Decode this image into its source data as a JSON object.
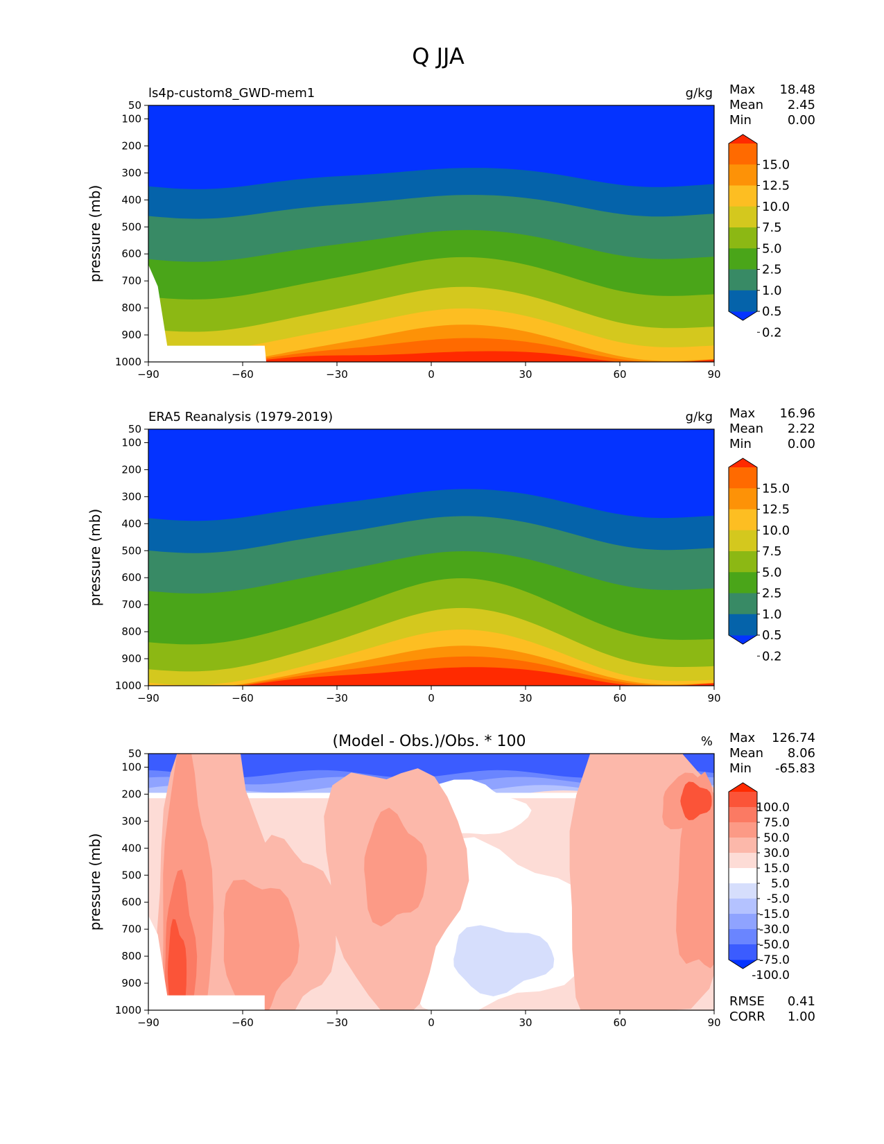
{
  "figure_title": "Q JJA",
  "chart_data": [
    {
      "type": "contour",
      "title": "ls4p-custom8_GWD-mem1",
      "units": "g/kg",
      "xlabel": "",
      "ylabel": "pressure (mb)",
      "xlim": [
        -90,
        90
      ],
      "ylim": [
        1000,
        50
      ],
      "xticks": [
        "−90",
        "−60",
        "−30",
        "0",
        "30",
        "60",
        "90"
      ],
      "yticks": [
        "50",
        "100",
        "200",
        "300",
        "400",
        "500",
        "600",
        "700",
        "800",
        "900",
        "1000"
      ],
      "stats": [
        {
          "label": "Max",
          "value": "18.48"
        },
        {
          "label": "Mean",
          "value": "2.45"
        },
        {
          "label": "Min",
          "value": "0.00"
        }
      ],
      "colorbar_labels": [
        "15.0",
        "12.5",
        "10.0",
        "7.5",
        "5.0",
        "2.5",
        "1.0",
        "0.5",
        "0.2"
      ],
      "levels": [
        0.2,
        0.5,
        1.0,
        2.5,
        5.0,
        7.5,
        10.0,
        12.5,
        15.0
      ],
      "colors": [
        "#0433ff",
        "#0563aa",
        "#388a65",
        "#4aa519",
        "#8cb814",
        "#d4c81e",
        "#fdbe22",
        "#fd9207",
        "#ff6a00",
        "#ff2a00"
      ],
      "ridge_lat": 8,
      "ridge_pressures": [
        280,
        380,
        510,
        610,
        720,
        800,
        860,
        910,
        960
      ],
      "edge_pressures": [
        350,
        460,
        620,
        760,
        880,
        950,
        1000,
        1000,
        1000
      ],
      "terrain_edge_lat": -53
    },
    {
      "type": "contour",
      "title": "ERA5 Reanalysis (1979-2019)",
      "units": "g/kg",
      "xlabel": "",
      "ylabel": "pressure (mb)",
      "xlim": [
        -90,
        90
      ],
      "ylim": [
        1000,
        50
      ],
      "xticks": [
        "−90",
        "−60",
        "−30",
        "0",
        "30",
        "60",
        "90"
      ],
      "yticks": [
        "50",
        "100",
        "200",
        "300",
        "400",
        "500",
        "600",
        "700",
        "800",
        "900",
        "1000"
      ],
      "stats": [
        {
          "label": "Max",
          "value": "16.96"
        },
        {
          "label": "Mean",
          "value": "2.22"
        },
        {
          "label": "Min",
          "value": "0.00"
        }
      ],
      "colorbar_labels": [
        "15.0",
        "12.5",
        "10.0",
        "7.5",
        "5.0",
        "2.5",
        "1.0",
        "0.5",
        "0.2"
      ],
      "levels": [
        0.2,
        0.5,
        1.0,
        2.5,
        5.0,
        7.5,
        10.0,
        12.5,
        15.0
      ],
      "colors": [
        "#0433ff",
        "#0563aa",
        "#388a65",
        "#4aa519",
        "#8cb814",
        "#d4c81e",
        "#fdbe22",
        "#fd9207",
        "#ff6a00",
        "#ff2a00"
      ],
      "ridge_lat": 8,
      "ridge_pressures": [
        270,
        370,
        500,
        600,
        710,
        790,
        850,
        890,
        930
      ],
      "edge_pressures": [
        380,
        500,
        650,
        840,
        940,
        990,
        1000,
        1000,
        1000
      ],
      "terrain_edge_lat": -90
    },
    {
      "type": "contour",
      "title": "(Model - Obs.)/Obs. * 100",
      "units": "%",
      "xlabel": "",
      "ylabel": "pressure (mb)",
      "xlim": [
        -90,
        90
      ],
      "ylim": [
        1000,
        50
      ],
      "xticks": [
        "−90",
        "−60",
        "−30",
        "0",
        "30",
        "60",
        "90"
      ],
      "yticks": [
        "50",
        "100",
        "200",
        "300",
        "400",
        "500",
        "600",
        "700",
        "800",
        "900",
        "1000"
      ],
      "stats": [
        {
          "label": "Max",
          "value": "126.74"
        },
        {
          "label": "Mean",
          "value": "8.06"
        },
        {
          "label": "Min",
          "value": "-65.83"
        }
      ],
      "bottom_stats": [
        {
          "label": "RMSE",
          "value": "0.41"
        },
        {
          "label": "CORR",
          "value": "1.00"
        }
      ],
      "colorbar_labels": [
        "100.0",
        "75.0",
        "50.0",
        "30.0",
        "15.0",
        "5.0",
        "-5.0",
        "-15.0",
        "-30.0",
        "-50.0",
        "-75.0",
        "-100.0"
      ],
      "colors": [
        "#0433ff",
        "#3b5cff",
        "#6a85ff",
        "#8fa3ff",
        "#b4c2ff",
        "#d6defc",
        "#ffffff",
        "#fddcd6",
        "#fcb8aa",
        "#fc9a86",
        "#fb7a63",
        "#fb5438",
        "#ff2a00"
      ]
    }
  ]
}
